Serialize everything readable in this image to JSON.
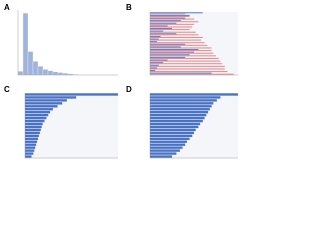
{
  "chart_data": [
    {
      "type": "histogram",
      "title": "A",
      "bins": [
        0,
        1,
        2,
        3,
        4,
        5,
        6,
        7,
        8,
        9,
        10,
        11,
        12
      ],
      "values": [
        6,
        100,
        38,
        22,
        14,
        9,
        7,
        5,
        4,
        3,
        2,
        1
      ],
      "xlim": [
        0,
        20
      ],
      "ylim": [
        0,
        105
      ],
      "color": "#9fb3dc"
    },
    {
      "type": "barh",
      "title": "B",
      "categories": [
        null,
        null,
        null,
        null,
        null,
        null,
        null,
        null,
        null,
        null,
        null,
        null,
        null,
        null,
        null,
        null,
        null,
        null,
        null,
        null,
        null,
        null,
        null,
        null
      ],
      "series": [
        {
          "color": "#5b7fcf",
          "values": [
            60,
            45,
            40,
            35,
            30,
            20,
            25,
            15,
            30,
            12,
            10,
            8,
            40,
            35,
            55,
            50,
            45,
            40,
            20,
            15,
            10,
            8,
            6,
            70
          ]
        },
        {
          "color": "#e8898b",
          "values": [
            40,
            45,
            50,
            55,
            50,
            48,
            45,
            52,
            55,
            60,
            58,
            62,
            65,
            70,
            70,
            72,
            75,
            78,
            80,
            82,
            85,
            85,
            88,
            95
          ]
        }
      ],
      "xlim": [
        0,
        100
      ]
    },
    {
      "type": "barh",
      "title": "C",
      "categories": [
        null,
        null,
        null,
        null,
        null,
        null,
        null,
        null,
        null,
        null,
        null,
        null,
        null,
        null,
        null,
        null,
        null,
        null,
        null,
        null,
        null,
        null
      ],
      "series": [
        {
          "color": "#4a72c4",
          "values": [
            100,
            55,
            45,
            40,
            35,
            30,
            27,
            25,
            23,
            21,
            19,
            18,
            17,
            16,
            15,
            14,
            13,
            12,
            11,
            10,
            9,
            7
          ]
        }
      ],
      "xlim": [
        0,
        100
      ]
    },
    {
      "type": "barh",
      "title": "D",
      "categories": [
        null,
        null,
        null,
        null,
        null,
        null,
        null,
        null,
        null,
        null,
        null,
        null,
        null,
        null,
        null,
        null,
        null,
        null,
        null,
        null,
        null,
        null
      ],
      "series": [
        {
          "color": "#4a72c4",
          "values": [
            100,
            80,
            76,
            72,
            70,
            68,
            66,
            64,
            62,
            60,
            57,
            55,
            52,
            50,
            48,
            45,
            42,
            40,
            37,
            34,
            30,
            25
          ]
        }
      ],
      "xlim": [
        0,
        100
      ]
    }
  ]
}
